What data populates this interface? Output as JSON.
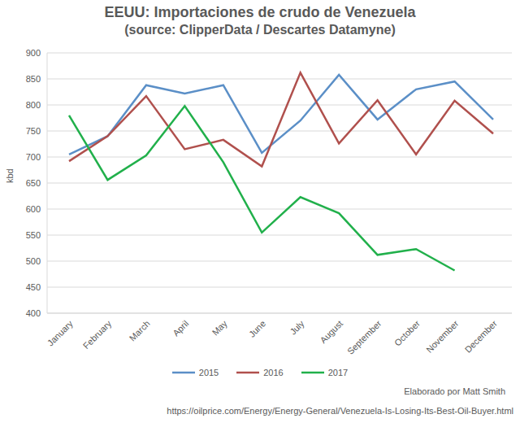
{
  "chart_data": {
    "type": "line",
    "title": "EEUU: Importaciones de crudo de Venezuela",
    "subtitle": "(source: ClipperData / Descartes Datamyne)",
    "y_label": "kbd",
    "annotations": [
      "Elaborado por Matt Smith",
      "https://oilprice.com/Energy/Energy-General/Venezuela-Is-Losing-Its-Best-Oil-Buyer.html"
    ],
    "categories": [
      "January",
      "February",
      "March",
      "April",
      "May",
      "June",
      "July",
      "August",
      "September",
      "October",
      "November",
      "December"
    ],
    "series": [
      {
        "name": "2015",
        "color": "#5b8fc7",
        "values": [
          705,
          740,
          838,
          822,
          838,
          708,
          770,
          858,
          772,
          830,
          845,
          772
        ]
      },
      {
        "name": "2016",
        "color": "#b0504d",
        "values": [
          692,
          740,
          817,
          715,
          733,
          682,
          862,
          726,
          809,
          705,
          808,
          745
        ]
      },
      {
        "name": "2017",
        "color": "#21b04b",
        "values": [
          780,
          656,
          703,
          798,
          690,
          555,
          623,
          592,
          512,
          523,
          482,
          null
        ]
      }
    ],
    "ylim": [
      400,
      900
    ],
    "yticks": [
      400,
      450,
      500,
      550,
      600,
      650,
      700,
      750,
      800,
      850,
      900
    ],
    "grid": true,
    "legend": "bottom"
  }
}
